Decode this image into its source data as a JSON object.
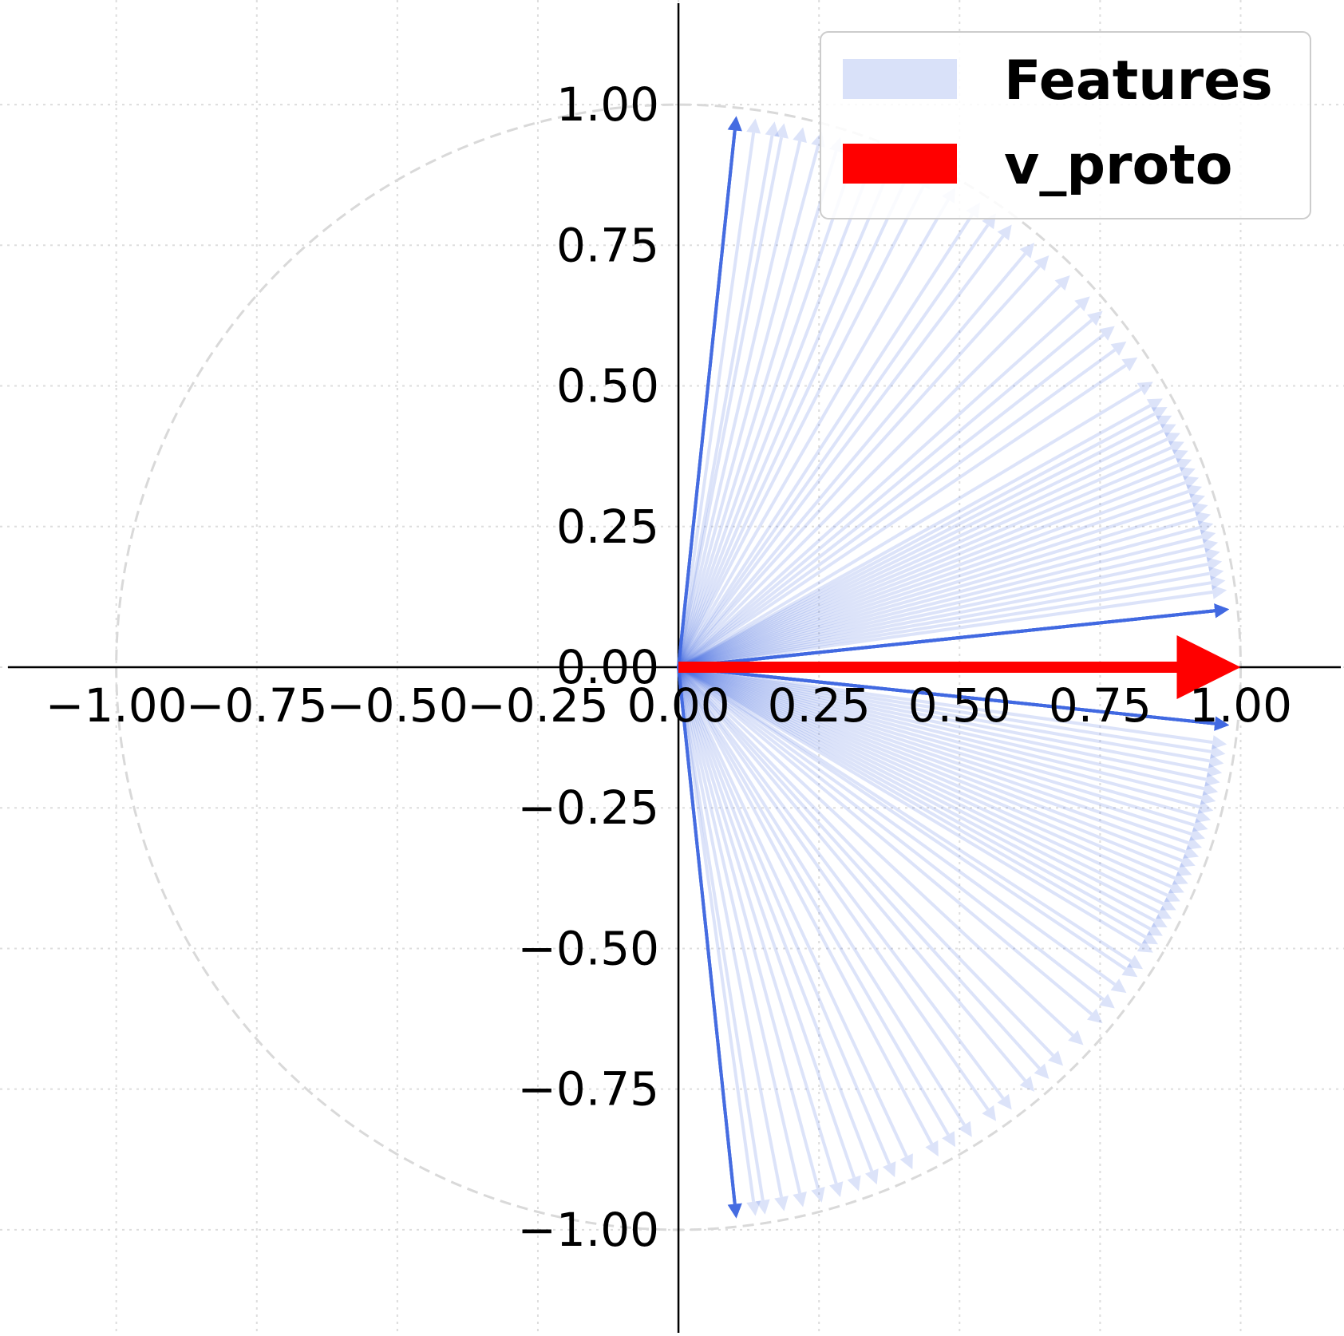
{
  "chart_data": {
    "type": "vector",
    "title": "",
    "xlabel": "",
    "ylabel": "",
    "xlim": [
      -1.1,
      1.1
    ],
    "ylim": [
      -1.1,
      1.1
    ],
    "grid": true,
    "unit_circle": true,
    "legend_position": "top-right",
    "xticks": [
      "−1.00",
      "−0.75",
      "−0.50",
      "−0.25",
      "0.00",
      "0.25",
      "0.50",
      "0.75",
      "1.00"
    ],
    "yticks": [
      "1.00",
      "0.75",
      "0.50",
      "0.25",
      "0.00",
      "−0.25",
      "−0.50",
      "−0.75",
      "−1.00"
    ],
    "series": [
      {
        "name": "Features",
        "color": "#4169e1",
        "style": "semi-transparent arrows from origin",
        "angles_deg": [
          84,
          84,
          84,
          84,
          84,
          84,
          84,
          84,
          84,
          84,
          84,
          84,
          84,
          84,
          84,
          84,
          82,
          80,
          79,
          77,
          75,
          73,
          71,
          69,
          67,
          65,
          63,
          60,
          57,
          55,
          53,
          50,
          48,
          45,
          42,
          40,
          38,
          36,
          34,
          31,
          29,
          28,
          27,
          26,
          25,
          24,
          23,
          22,
          21,
          20,
          19,
          18,
          17,
          16,
          15,
          14,
          13,
          12,
          11,
          10,
          9,
          8,
          6,
          6,
          6,
          6,
          6,
          6,
          6,
          6,
          6,
          6,
          6,
          6,
          6,
          6,
          6,
          6,
          6,
          6,
          6,
          6,
          6,
          6,
          6,
          6,
          -6,
          -6,
          -6,
          -6,
          -6,
          -6,
          -6,
          -6,
          -6,
          -6,
          -6,
          -6,
          -6,
          -6,
          -6,
          -6,
          -6,
          -6,
          -6,
          -6,
          -6,
          -6,
          -6,
          -6,
          -8,
          -9,
          -10,
          -11,
          -12,
          -13,
          -14,
          -15,
          -16,
          -17,
          -18,
          -19,
          -20,
          -21,
          -22,
          -23,
          -24,
          -25,
          -26,
          -27,
          -28,
          -29,
          -30,
          -31,
          -33,
          -34,
          -36,
          -38,
          -40,
          -43,
          -46,
          -48,
          -50,
          -53,
          -55,
          -58,
          -60,
          -62,
          -65,
          -67,
          -69,
          -71,
          -73,
          -75,
          -77,
          -79,
          -81,
          -82,
          -84,
          -84,
          -84,
          -84,
          -84,
          -84,
          -84,
          -84,
          -84,
          -84,
          -84,
          -84,
          -84,
          -84,
          -84,
          -84
        ]
      },
      {
        "name": "v_proto",
        "color": "#ff0000",
        "angles_deg": [
          0
        ]
      }
    ]
  }
}
